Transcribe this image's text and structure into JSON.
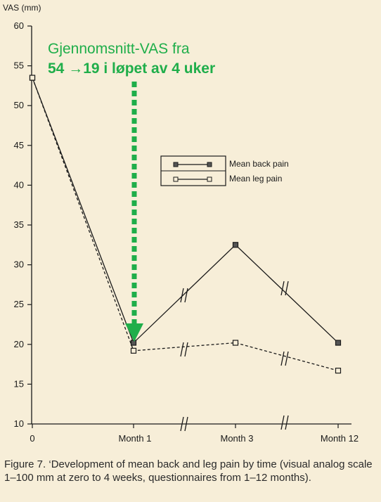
{
  "colors": {
    "background": "#f7eed8",
    "ink": "#1a1a1a",
    "annotation": "#1fae4a"
  },
  "chart_data": {
    "type": "line",
    "ylabel": "VAS (mm)",
    "xlabel": "",
    "ylim": [
      10,
      60
    ],
    "yticks": [
      10,
      15,
      20,
      25,
      30,
      35,
      40,
      45,
      50,
      55,
      60
    ],
    "categories": [
      "0",
      "Month 1",
      "Month 3",
      "Month 12"
    ],
    "grid": false,
    "legend_position": "upper-right",
    "axis_break_markers": "double slash marks on the lines and on the x-axis between Month 1–Month 3 and Month 3–Month 12",
    "series": [
      {
        "name": "Mean back pain",
        "line_style": "solid",
        "marker": "filled-square",
        "x": [
          0,
          1,
          3,
          12
        ],
        "values": [
          53.5,
          20.2,
          32.5,
          20.2
        ]
      },
      {
        "name": "Mean leg pain",
        "line_style": "dashed",
        "marker": "open-square",
        "x": [
          0,
          1,
          3,
          12
        ],
        "values": [
          53.5,
          19.2,
          20.2,
          16.7
        ]
      }
    ],
    "annotation": {
      "line1": "Gjennomsnitt-VAS fra",
      "line2": "54 →19 i løpet av 4 uker",
      "arrow": "dashed green arrow pointing down to the Month 1 value"
    }
  },
  "caption": "Figure 7. ‘Development of mean back and leg pain by time (visual analog scale 1–100 mm at zero to 4 weeks, questionnaires from 1–12 months)."
}
